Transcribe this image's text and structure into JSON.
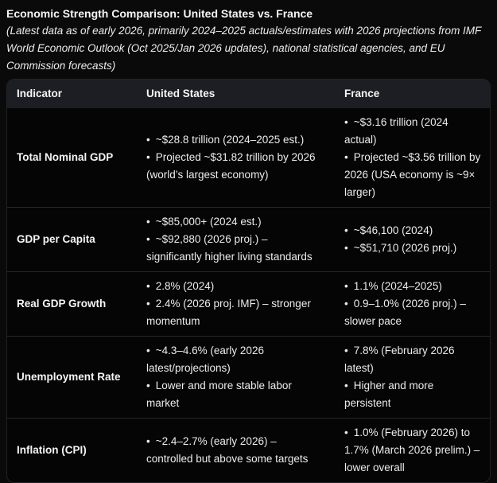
{
  "title": "Economic Strength Comparison: United States vs. France",
  "subtitle": "(Latest data as of early 2026, primarily 2024–2025 actuals/estimates with 2026 projections from IMF World Economic Outlook (Oct 2025/Jan 2026 updates), national statistical agencies, and EU Commission forecasts)",
  "colors": {
    "page_background": "#0a0a0a",
    "table_header_background": "#1d1e23",
    "row_divider": "#28282c",
    "text": "#ececec"
  },
  "table": {
    "headers": [
      "Indicator",
      "United States",
      "France"
    ],
    "rows": [
      {
        "indicator": "Total Nominal GDP",
        "us": [
          "~$28.8 trillion (2024–2025 est.)",
          "Projected ~$31.82 trillion by 2026 (world’s largest economy)"
        ],
        "france": [
          "~$3.16 trillion (2024 actual)",
          "Projected ~$3.56 trillion by 2026 (USA economy is ~9× larger)"
        ]
      },
      {
        "indicator": "GDP per Capita",
        "us": [
          "~$85,000+ (2024 est.)",
          "~$92,880 (2026 proj.) – significantly higher living standards"
        ],
        "france": [
          "~$46,100 (2024)",
          "~$51,710 (2026 proj.)"
        ]
      },
      {
        "indicator": "Real GDP Growth",
        "us": [
          "2.8% (2024)",
          "2.4% (2026 proj. IMF) – stronger momentum"
        ],
        "france": [
          "1.1% (2024–2025)",
          "0.9–1.0% (2026 proj.) – slower pace"
        ]
      },
      {
        "indicator": "Unemployment Rate",
        "us": [
          "~4.3–4.6% (early 2026 latest/projections)",
          "Lower and more stable labor market"
        ],
        "france": [
          "7.8% (February 2026 latest)",
          "Higher and more persistent"
        ]
      },
      {
        "indicator": "Inflation (CPI)",
        "us": [
          "~2.4–2.7% (early 2026) – controlled but above some targets"
        ],
        "france": [
          "1.0% (February 2026) to 1.7% (March 2026 prelim.) – lower overall"
        ]
      }
    ]
  }
}
